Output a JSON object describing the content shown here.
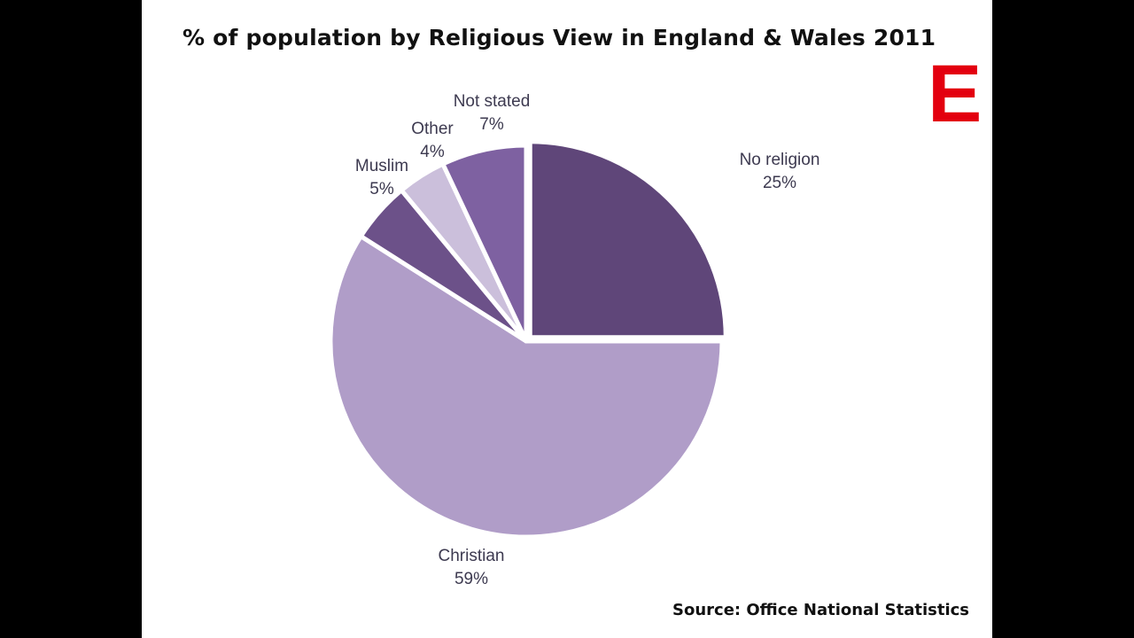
{
  "chart_data": {
    "type": "pie",
    "title": "% of population by Religious View in England & Wales 2011",
    "source": "Source: Office National Statistics",
    "logo_letter": "E",
    "slices": [
      {
        "label": "No religion",
        "value": 25,
        "value_label": "25%",
        "color": "#5f4679"
      },
      {
        "label": "Christian",
        "value": 59,
        "value_label": "59%",
        "color": "#b09dc8"
      },
      {
        "label": "Muslim",
        "value": 5,
        "value_label": "5%",
        "color": "#6c5189"
      },
      {
        "label": "Other",
        "value": 4,
        "value_label": "4%",
        "color": "#cbbfdb"
      },
      {
        "label": "Not stated",
        "value": 7,
        "value_label": "7%",
        "color": "#7e61a1"
      }
    ],
    "start_angle_deg": 0,
    "direction": "clockwise",
    "exploded_slice": "No religion"
  }
}
